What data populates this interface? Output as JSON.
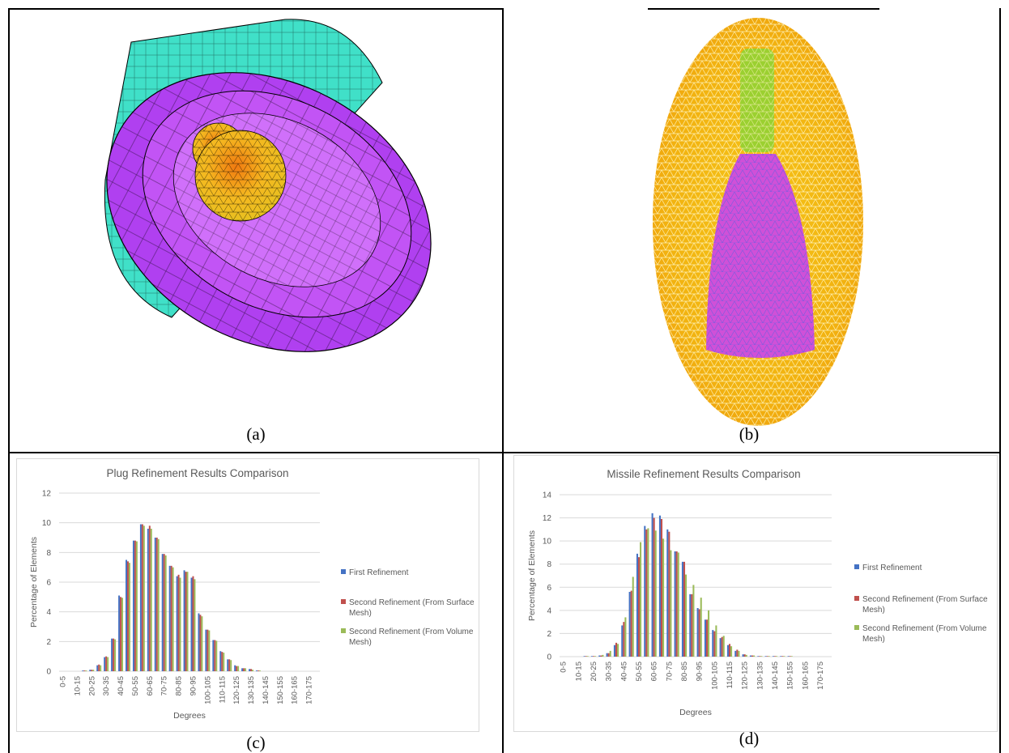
{
  "captions": {
    "a": "(a)",
    "b": "(b)",
    "c": "(c)",
    "d": "(d)"
  },
  "colors": {
    "series_first": "#4472C4",
    "series_surface": "#C0504D",
    "series_volume": "#9BBB59",
    "mesh_cyan": "#40E0C8",
    "mesh_magenta": "#B040F0",
    "mesh_yellow": "#F5C518",
    "mesh_orange": "#F0A010",
    "mesh_green": "#90E030"
  },
  "chart_data": [
    {
      "type": "bar",
      "title": "Plug Refinement Results Comparison",
      "xlabel": "Degrees",
      "ylabel": "Percentage of Elements",
      "ylim": [
        0,
        12
      ],
      "yticks": [
        0,
        2,
        4,
        6,
        8,
        10,
        12
      ],
      "grid": true,
      "legend_position": "right",
      "categories": [
        "0-5",
        "5-10",
        "10-15",
        "15-20",
        "20-25",
        "25-30",
        "30-35",
        "35-40",
        "40-45",
        "45-50",
        "50-55",
        "55-60",
        "60-65",
        "65-70",
        "70-75",
        "75-80",
        "80-85",
        "85-90",
        "90-95",
        "95-100",
        "100-105",
        "105-110",
        "110-115",
        "115-120",
        "120-125",
        "125-130",
        "130-135",
        "135-140",
        "140-145",
        "145-150",
        "150-155",
        "155-160",
        "160-165",
        "165-170",
        "170-175",
        "175-180"
      ],
      "xtick_labels": [
        "0-5",
        "",
        "10-15",
        "",
        "20-25",
        "",
        "30-35",
        "",
        "40-45",
        "",
        "50-55",
        "",
        "60-65",
        "",
        "70-75",
        "",
        "80-85",
        "",
        "90-95",
        "",
        "100-105",
        "",
        "110-115",
        "",
        "120-125",
        "",
        "130-135",
        "",
        "140-145",
        "",
        "150-155",
        "",
        "160-165",
        "",
        "170-175",
        ""
      ],
      "series": [
        {
          "name": "First Refinement",
          "values": [
            0,
            0,
            0,
            0.05,
            0.1,
            0.4,
            0.95,
            2.2,
            5.1,
            7.5,
            8.8,
            9.9,
            9.6,
            9.0,
            7.9,
            7.1,
            6.4,
            6.8,
            6.3,
            3.9,
            2.8,
            2.1,
            1.35,
            0.8,
            0.4,
            0.2,
            0.15,
            0.05,
            0,
            0,
            0,
            0,
            0,
            0,
            0,
            0
          ]
        },
        {
          "name": "Second Refinement (From Surface Mesh)",
          "values": [
            0,
            0,
            0,
            0.05,
            0.1,
            0.45,
            1.0,
            2.2,
            5.0,
            7.4,
            8.8,
            9.9,
            9.8,
            9.0,
            7.9,
            7.1,
            6.5,
            6.7,
            6.4,
            3.8,
            2.8,
            2.1,
            1.3,
            0.8,
            0.35,
            0.2,
            0.15,
            0.05,
            0,
            0,
            0,
            0,
            0,
            0,
            0,
            0
          ]
        },
        {
          "name": "Second Refinement (From Volume Mesh)",
          "values": [
            0,
            0,
            0,
            0.05,
            0.1,
            0.4,
            0.95,
            2.15,
            4.95,
            7.3,
            8.75,
            9.8,
            9.6,
            8.9,
            7.8,
            7.0,
            6.3,
            6.7,
            6.2,
            3.7,
            2.75,
            2.05,
            1.25,
            0.75,
            0.35,
            0.2,
            0.1,
            0.05,
            0,
            0,
            0,
            0,
            0,
            0,
            0,
            0
          ]
        }
      ]
    },
    {
      "type": "bar",
      "title": "Missile Refinement Results Comparison",
      "xlabel": "Degrees",
      "ylabel": "Percentage of Elements",
      "ylim": [
        0,
        14
      ],
      "yticks": [
        0,
        2,
        4,
        6,
        8,
        10,
        12,
        14
      ],
      "grid": true,
      "legend_position": "right",
      "categories": [
        "0-5",
        "5-10",
        "10-15",
        "15-20",
        "20-25",
        "25-30",
        "30-35",
        "35-40",
        "40-45",
        "45-50",
        "50-55",
        "55-60",
        "60-65",
        "65-70",
        "70-75",
        "75-80",
        "80-85",
        "85-90",
        "90-95",
        "95-100",
        "100-105",
        "105-110",
        "110-115",
        "115-120",
        "120-125",
        "125-130",
        "130-135",
        "135-140",
        "140-145",
        "145-150",
        "150-155",
        "155-160",
        "160-165",
        "165-170",
        "170-175",
        "175-180"
      ],
      "xtick_labels": [
        "0-5",
        "",
        "10-15",
        "",
        "20-25",
        "",
        "30-35",
        "",
        "40-45",
        "",
        "50-55",
        "",
        "60-65",
        "",
        "70-75",
        "",
        "80-85",
        "",
        "90-95",
        "",
        "100-105",
        "",
        "110-115",
        "",
        "120-125",
        "",
        "130-135",
        "",
        "140-145",
        "",
        "150-155",
        "",
        "160-165",
        "",
        "170-175",
        ""
      ],
      "series": [
        {
          "name": "First Refinement",
          "values": [
            0,
            0,
            0,
            0.05,
            0.05,
            0.1,
            0.3,
            1.0,
            2.7,
            5.6,
            8.9,
            11.3,
            12.4,
            12.2,
            11.0,
            9.1,
            8.2,
            5.4,
            4.2,
            3.2,
            2.3,
            1.6,
            1.0,
            0.5,
            0.2,
            0.1,
            0.05,
            0.05,
            0.05,
            0.05,
            0.05,
            0,
            0,
            0,
            0,
            0
          ]
        },
        {
          "name": "Second Refinement (From Surface Mesh)",
          "values": [
            0,
            0,
            0,
            0.05,
            0.05,
            0.1,
            0.3,
            1.2,
            3.0,
            5.7,
            8.6,
            11.0,
            12.0,
            11.9,
            10.8,
            9.1,
            8.2,
            5.4,
            4.1,
            3.2,
            2.2,
            1.7,
            1.1,
            0.6,
            0.2,
            0.1,
            0.05,
            0.05,
            0.05,
            0.05,
            0.05,
            0,
            0,
            0,
            0,
            0
          ]
        },
        {
          "name": "Second Refinement (From Volume Mesh)",
          "values": [
            0,
            0,
            0,
            0.05,
            0.05,
            0.15,
            0.5,
            1.1,
            3.4,
            6.9,
            9.9,
            11.1,
            10.9,
            10.2,
            9.2,
            9.0,
            7.1,
            6.2,
            5.1,
            4.0,
            2.7,
            1.8,
            0.9,
            0.5,
            0.15,
            0.1,
            0.05,
            0.05,
            0.05,
            0.05,
            0.05,
            0,
            0,
            0,
            0,
            0
          ]
        }
      ]
    }
  ]
}
